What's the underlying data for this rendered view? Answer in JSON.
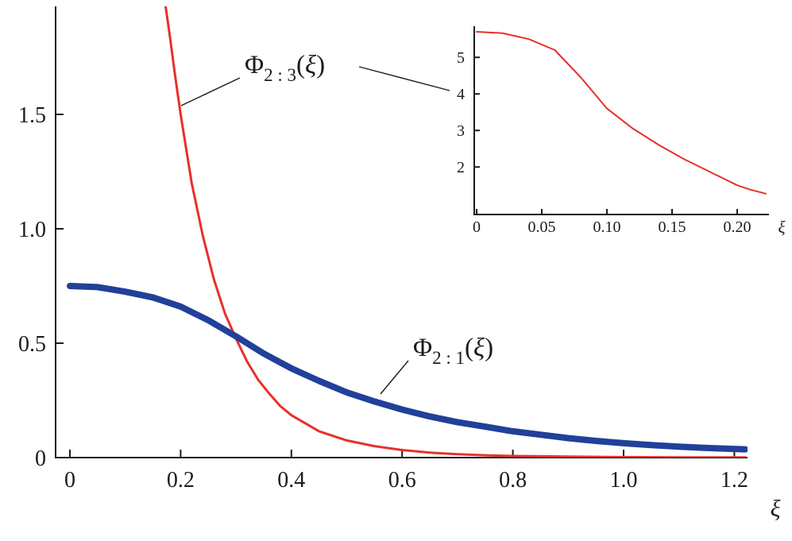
{
  "figure": {
    "background": "#ffffff",
    "axis_color": "#1c1c1c"
  },
  "chart_data": [
    {
      "id": "main",
      "type": "line",
      "title": "",
      "xlabel": "ξ",
      "ylabel": "",
      "xlim": [
        0,
        1.224
      ],
      "ylim": [
        0,
        1.97
      ],
      "grid": false,
      "legend": "none (curves labeled by annotations with leader lines)",
      "x_ticks": {
        "values": [
          0,
          0.2,
          0.4,
          0.6,
          0.8,
          1.0,
          1.2
        ],
        "labels": [
          "0",
          "0.2",
          "0.4",
          "0.6",
          "0.8",
          "1.0",
          "1.2"
        ]
      },
      "y_ticks": {
        "values": [
          0,
          0.5,
          1.0,
          1.5
        ],
        "labels": [
          "0",
          "0.5",
          "1.0",
          "1.5"
        ]
      },
      "series": [
        {
          "name": "Phi_2:3(xi)",
          "color": "#e8302a",
          "width": 3,
          "x": [
            0,
            0.02,
            0.04,
            0.06,
            0.08,
            0.1,
            0.12,
            0.14,
            0.15,
            0.16,
            0.17,
            0.18,
            0.19,
            0.2,
            0.22,
            0.24,
            0.26,
            0.28,
            0.3,
            0.32,
            0.34,
            0.36,
            0.38,
            0.4,
            0.45,
            0.5,
            0.55,
            0.6,
            0.65,
            0.7,
            0.75,
            0.8,
            0.9,
            1.0,
            1.1,
            1.22
          ],
          "y": [
            5.7,
            5.66,
            5.5,
            5.2,
            4.45,
            3.6,
            3.05,
            2.6,
            2.4,
            2.2,
            2.02,
            1.85,
            1.67,
            1.5,
            1.2,
            0.97,
            0.78,
            0.63,
            0.52,
            0.42,
            0.34,
            0.28,
            0.225,
            0.185,
            0.115,
            0.075,
            0.05,
            0.033,
            0.022,
            0.015,
            0.01,
            0.007,
            0.004,
            0.002,
            0.001,
            0.001
          ]
        },
        {
          "name": "Phi_2:1(xi)",
          "color": "#21409a",
          "width": 8,
          "x": [
            0,
            0.05,
            0.1,
            0.15,
            0.2,
            0.25,
            0.3,
            0.35,
            0.4,
            0.45,
            0.5,
            0.55,
            0.6,
            0.65,
            0.7,
            0.75,
            0.8,
            0.85,
            0.9,
            0.95,
            1.0,
            1.05,
            1.1,
            1.15,
            1.22
          ],
          "y": [
            0.75,
            0.745,
            0.725,
            0.7,
            0.66,
            0.6,
            0.53,
            0.455,
            0.39,
            0.335,
            0.285,
            0.245,
            0.21,
            0.18,
            0.155,
            0.135,
            0.115,
            0.1,
            0.085,
            0.073,
            0.063,
            0.055,
            0.048,
            0.042,
            0.036
          ]
        }
      ],
      "annotations": [
        {
          "name": "phi-2-3-label",
          "parts": [
            {
              "t": "Φ",
              "style": "base"
            },
            {
              "t": "2 : 3",
              "style": "sub"
            },
            {
              "t": "(",
              "style": "base"
            },
            {
              "t": "ξ",
              "style": "italic"
            },
            {
              "t": ")",
              "style": "base"
            }
          ],
          "x": 308,
          "y": 92,
          "leaders": [
            [
              302,
              98,
              228,
              133
            ],
            [
              452,
              84,
              566,
              114
            ]
          ]
        },
        {
          "name": "phi-2-1-label",
          "parts": [
            {
              "t": "Φ",
              "style": "base"
            },
            {
              "t": "2 : 1",
              "style": "sub"
            },
            {
              "t": "(",
              "style": "base"
            },
            {
              "t": "ξ",
              "style": "italic"
            },
            {
              "t": ")",
              "style": "base"
            }
          ],
          "x": 520,
          "y": 448,
          "leaders": [
            [
              514,
              454,
              479,
              496
            ]
          ]
        }
      ]
    },
    {
      "id": "inset",
      "type": "line",
      "title": "",
      "xlabel": "ξ",
      "ylabel": "",
      "xlim": [
        0,
        0.225
      ],
      "ylim": [
        0.7,
        5.75
      ],
      "grid": false,
      "x_ticks": {
        "values": [
          0,
          0.05,
          0.1,
          0.15,
          0.2
        ],
        "labels": [
          "0",
          "0.05",
          "0.10",
          "0.15",
          "0.20"
        ]
      },
      "y_ticks": {
        "values": [
          2,
          3,
          4,
          5
        ],
        "labels": [
          "2",
          "3",
          "4",
          "5"
        ]
      },
      "series": [
        {
          "name": "Phi_2:3(xi) zoomed",
          "color": "#e8302a",
          "width": 2,
          "x": [
            0,
            0.02,
            0.04,
            0.06,
            0.08,
            0.1,
            0.12,
            0.14,
            0.16,
            0.18,
            0.2,
            0.21,
            0.222
          ],
          "y": [
            5.7,
            5.66,
            5.5,
            5.2,
            4.45,
            3.6,
            3.05,
            2.6,
            2.2,
            1.85,
            1.5,
            1.38,
            1.27
          ]
        }
      ],
      "annotations": []
    }
  ]
}
